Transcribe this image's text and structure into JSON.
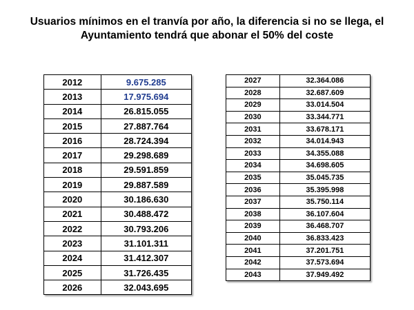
{
  "title": {
    "line1": "Usuarios mínimos en el tranvía por año, la diferencia si no se llega, el",
    "line2": "Ayuntamiento tendrá que abonar el 50% del coste"
  },
  "colors": {
    "highlight_value": "#1f3b8f",
    "text": "#000000",
    "border": "#000000"
  },
  "table_left": {
    "rows": [
      {
        "year": "2012",
        "value": "9.675.285",
        "highlight": true
      },
      {
        "year": "2013",
        "value": "17.975.694",
        "highlight": true
      },
      {
        "year": "2014",
        "value": "26.815.055"
      },
      {
        "year": "2015",
        "value": "27.887.764"
      },
      {
        "year": "2016",
        "value": "28.724.394"
      },
      {
        "year": "2017",
        "value": "29.298.689"
      },
      {
        "year": "2018",
        "value": "29.591.859"
      },
      {
        "year": "2019",
        "value": "29.887.589"
      },
      {
        "year": "2020",
        "value": "30.186.630"
      },
      {
        "year": "2021",
        "value": "30.488.472"
      },
      {
        "year": "2022",
        "value": "30.793.206"
      },
      {
        "year": "2023",
        "value": "31.101.311"
      },
      {
        "year": "2024",
        "value": "31.412.307"
      },
      {
        "year": "2025",
        "value": "31.726.435"
      },
      {
        "year": "2026",
        "value": "32.043.695"
      }
    ]
  },
  "table_right": {
    "rows": [
      {
        "year": "2027",
        "value": "32.364.086"
      },
      {
        "year": "2028",
        "value": "32.687.609"
      },
      {
        "year": "2029",
        "value": "33.014.504"
      },
      {
        "year": "2030",
        "value": "33.344.771"
      },
      {
        "year": "2031",
        "value": "33.678.171"
      },
      {
        "year": "2032",
        "value": "34.014.943"
      },
      {
        "year": "2033",
        "value": "34.355.088"
      },
      {
        "year": "2034",
        "value": "34.698.605"
      },
      {
        "year": "2035",
        "value": "35.045.735"
      },
      {
        "year": "2036",
        "value": "35.395.998"
      },
      {
        "year": "2037",
        "value": "35.750.114"
      },
      {
        "year": "2038",
        "value": "36.107.604"
      },
      {
        "year": "2039",
        "value": "36.468.707"
      },
      {
        "year": "2040",
        "value": "36.833.423"
      },
      {
        "year": "2041",
        "value": "37.201.751"
      },
      {
        "year": "2042",
        "value": "37.573.694"
      },
      {
        "year": "2043",
        "value": "37.949.492"
      }
    ]
  }
}
